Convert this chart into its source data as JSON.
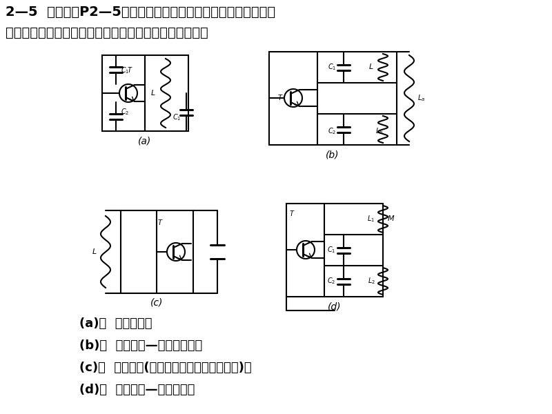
{
  "title_line1": "2—5  试判断图P2—5所示交流通路中，哪些可能产生振荚哪些不",
  "title_line2": "能产生振荚，若能产生振荚，则说明属于哪种振荚电路。",
  "answer_a": "(a)：  不能振荚；",
  "answer_b": "(b)：  可能振荚—电感三点式；",
  "answer_c": "(c)：  不能振荚(若考虑寄生电容则可能振荚)；",
  "answer_d": "(d)：  可能振荚—电容三点式",
  "bg_color": "#ffffff"
}
